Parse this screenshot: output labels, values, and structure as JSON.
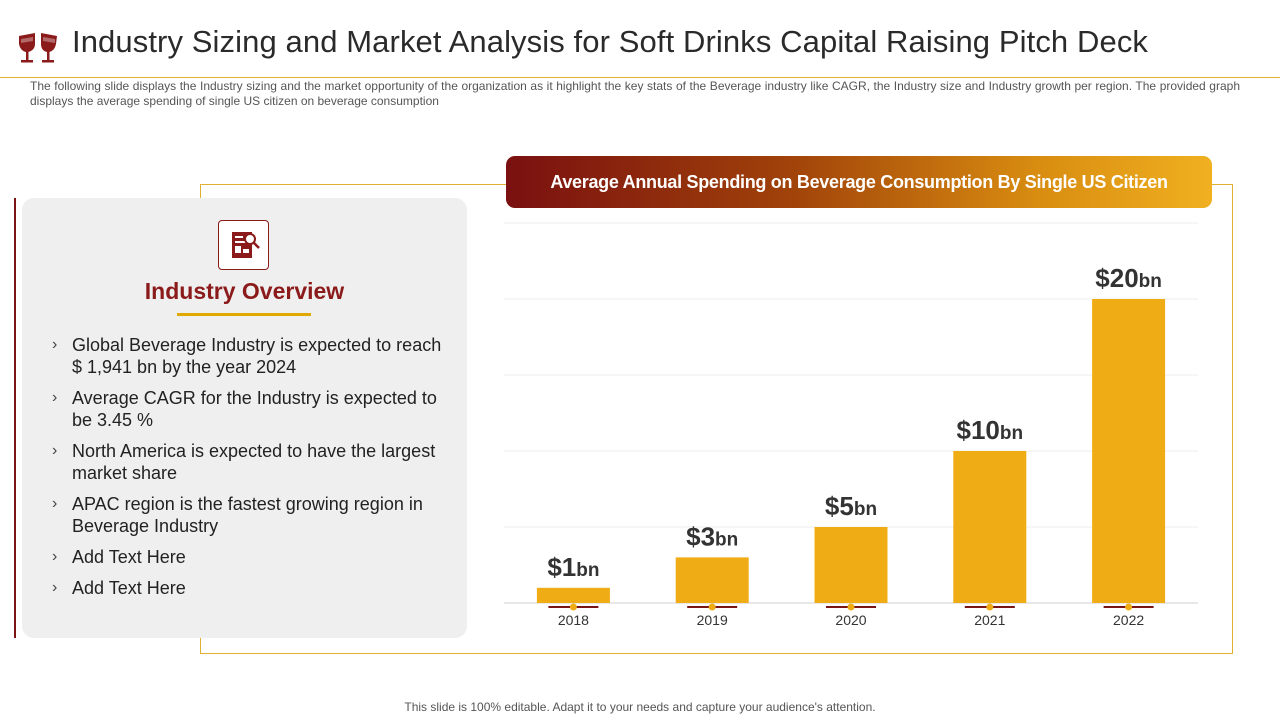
{
  "header": {
    "title": "Industry Sizing and Market Analysis for Soft Drinks Capital Raising Pitch Deck",
    "logo_icon": "wine-glasses-icon"
  },
  "subtitle": "The following slide displays the Industry sizing and the market opportunity of the organization as it highlight the key stats of the Beverage industry like CAGR, the Industry size and Industry growth per region. The provided graph displays the average spending of single US citizen on beverage consumption",
  "overview": {
    "icon": "report-magnifier-icon",
    "title": "Industry Overview",
    "items": [
      "Global Beverage Industry is expected to reach $ 1,941 bn by the year 2024",
      "Average CAGR for the Industry is expected to be 3.45 %",
      "North America is expected to have the largest market share",
      "APAC region is the fastest growing region in Beverage Industry",
      "Add Text Here",
      "Add Text Here"
    ],
    "bullet_glyph": "›"
  },
  "banner": {
    "title": "Average Annual Spending on Beverage Consumption By  Single US Citizen"
  },
  "chart_data": {
    "type": "bar",
    "title": "Average Annual Spending on Beverage Consumption By  Single US Citizen",
    "categories": [
      "2018",
      "2019",
      "2020",
      "2021",
      "2022"
    ],
    "values": [
      1,
      3,
      5,
      10,
      20
    ],
    "labels": [
      {
        "prefix": "$1",
        "unit": "bn"
      },
      {
        "prefix": "$3",
        "unit": "bn"
      },
      {
        "prefix": "$5",
        "unit": "bn"
      },
      {
        "prefix": "$10",
        "unit": "bn"
      },
      {
        "prefix": "$20",
        "unit": "bn"
      }
    ],
    "ylim": [
      0,
      25
    ],
    "xlabel": "",
    "ylabel": "",
    "grid": true,
    "bar_color": "#f0ac14",
    "marker_color": "#7a1414"
  },
  "footer": "This slide is 100% editable. Adapt it to your needs and capture your audience's attention."
}
